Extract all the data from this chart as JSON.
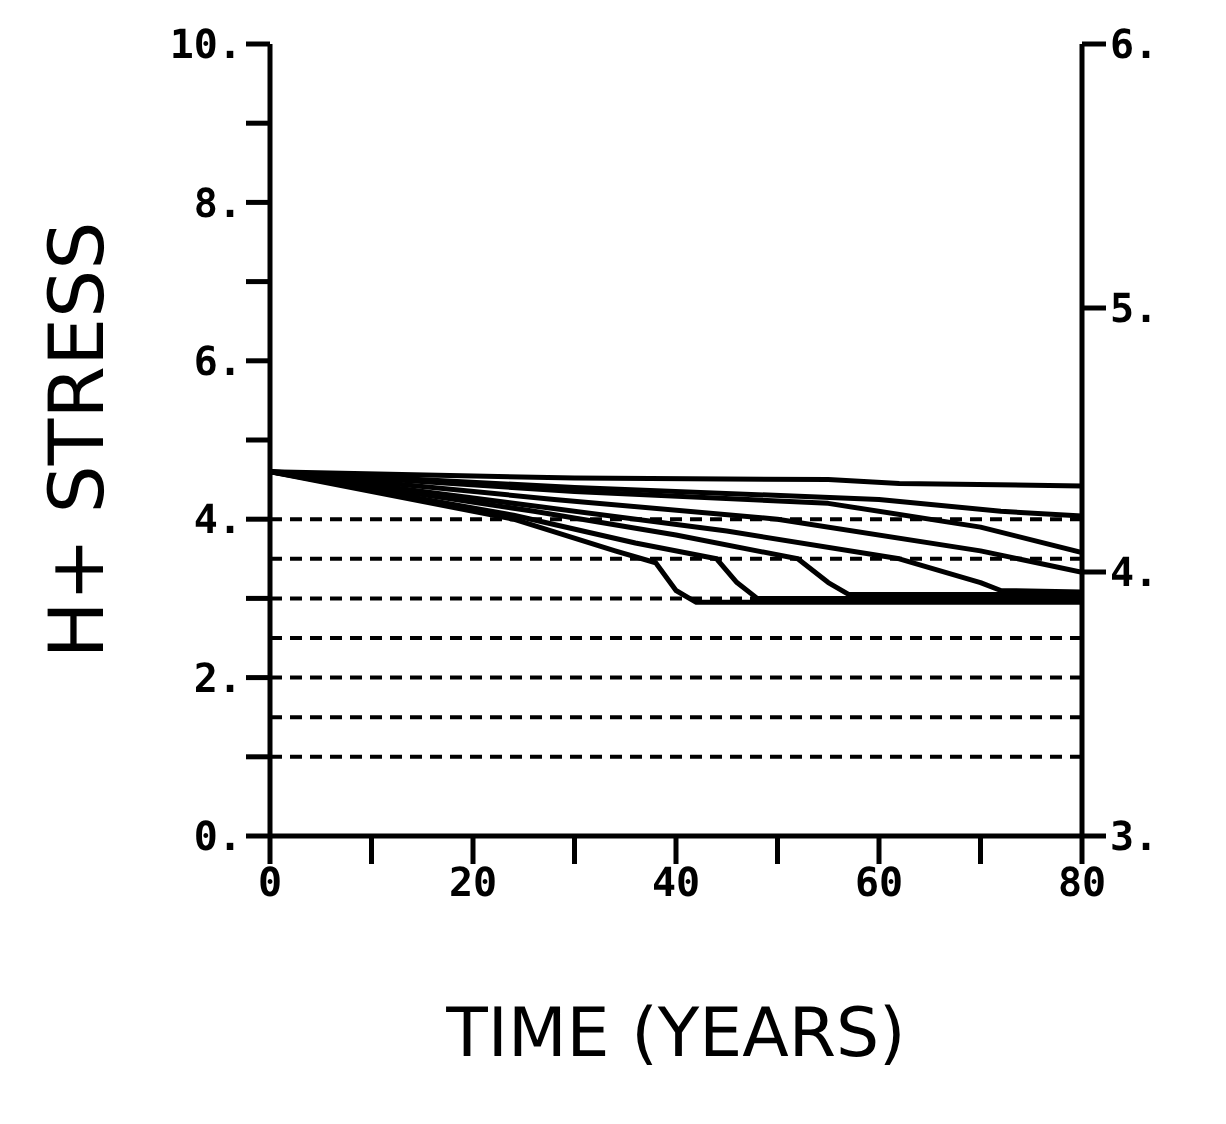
{
  "chart_data": {
    "type": "line",
    "xlabel": "TIME (YEARS)",
    "ylabel": "H+ STRESS",
    "xlim": [
      0,
      80
    ],
    "xticks": [
      0,
      {
        "value": 10,
        "label": null
      },
      20,
      {
        "value": 30,
        "label": null
      },
      40,
      {
        "value": 50,
        "label": null
      },
      60,
      {
        "value": 70,
        "label": null
      },
      80
    ],
    "ylim": [
      0,
      10
    ],
    "yticks": [
      {
        "value": 0,
        "label": "0."
      },
      {
        "value": 1,
        "label": null
      },
      {
        "value": 2,
        "label": "2."
      },
      {
        "value": 3,
        "label": null
      },
      {
        "value": 4,
        "label": "4."
      },
      {
        "value": 5,
        "label": null
      },
      {
        "value": 6,
        "label": "6."
      },
      {
        "value": 7,
        "label": null
      },
      {
        "value": 8,
        "label": "8."
      },
      {
        "value": 9,
        "label": null
      },
      {
        "value": 10,
        "label": "10."
      }
    ],
    "y2lim": [
      3,
      6
    ],
    "y2ticks": [
      {
        "value": 3,
        "label": "3."
      },
      {
        "value": 4,
        "label": "4."
      },
      {
        "value": 5,
        "label": "5."
      },
      {
        "value": 6,
        "label": "6."
      }
    ],
    "grid": false,
    "marker": "none",
    "line_style": "solid",
    "series": [
      {
        "color": "#000000",
        "x": [
          0,
          24,
          34,
          38,
          40,
          42,
          60,
          80
        ],
        "values": [
          4.6,
          4.0,
          3.6,
          3.45,
          3.1,
          2.95,
          2.95,
          2.95
        ]
      },
      {
        "color": "#000000",
        "x": [
          0,
          24,
          36,
          44,
          46,
          48,
          80
        ],
        "values": [
          4.6,
          4.05,
          3.7,
          3.5,
          3.2,
          3.0,
          3.0
        ]
      },
      {
        "color": "#000000",
        "x": [
          0,
          26,
          40,
          52,
          55,
          57,
          80
        ],
        "values": [
          4.6,
          4.1,
          3.8,
          3.5,
          3.2,
          3.05,
          3.05
        ]
      },
      {
        "color": "#000000",
        "x": [
          0,
          27,
          45,
          62,
          70,
          72,
          80
        ],
        "values": [
          4.6,
          4.15,
          3.85,
          3.5,
          3.2,
          3.1,
          3.08
        ]
      },
      {
        "color": "#000000",
        "x": [
          0,
          28,
          50,
          70,
          80
        ],
        "values": [
          4.6,
          4.25,
          4.0,
          3.6,
          3.33
        ]
      },
      {
        "color": "#000000",
        "x": [
          0,
          30,
          55,
          70,
          80
        ],
        "values": [
          4.6,
          4.35,
          4.2,
          3.9,
          3.58
        ]
      },
      {
        "color": "#000000",
        "x": [
          0,
          30,
          60,
          72,
          80
        ],
        "values": [
          4.6,
          4.4,
          4.25,
          4.1,
          4.04
        ]
      },
      {
        "color": "#000000",
        "x": [
          0,
          30,
          55,
          62,
          80
        ],
        "values": [
          4.6,
          4.52,
          4.5,
          4.45,
          4.42
        ]
      }
    ],
    "ref_lines": [
      {
        "axis": "y",
        "value": 1.0,
        "color": "#000000",
        "line_style": "dashed"
      },
      {
        "axis": "y",
        "value": 1.5,
        "color": "#000000",
        "line_style": "dashed"
      },
      {
        "axis": "y",
        "value": 2.0,
        "color": "#000000",
        "line_style": "dashed"
      },
      {
        "axis": "y",
        "value": 2.5,
        "color": "#000000",
        "line_style": "dashed"
      },
      {
        "axis": "y",
        "value": 3.0,
        "color": "#000000",
        "line_style": "dashed"
      },
      {
        "axis": "y",
        "value": 3.5,
        "color": "#000000",
        "line_style": "dashed"
      },
      {
        "axis": "y",
        "value": 4.0,
        "color": "#000000",
        "line_style": "dashed"
      }
    ]
  }
}
